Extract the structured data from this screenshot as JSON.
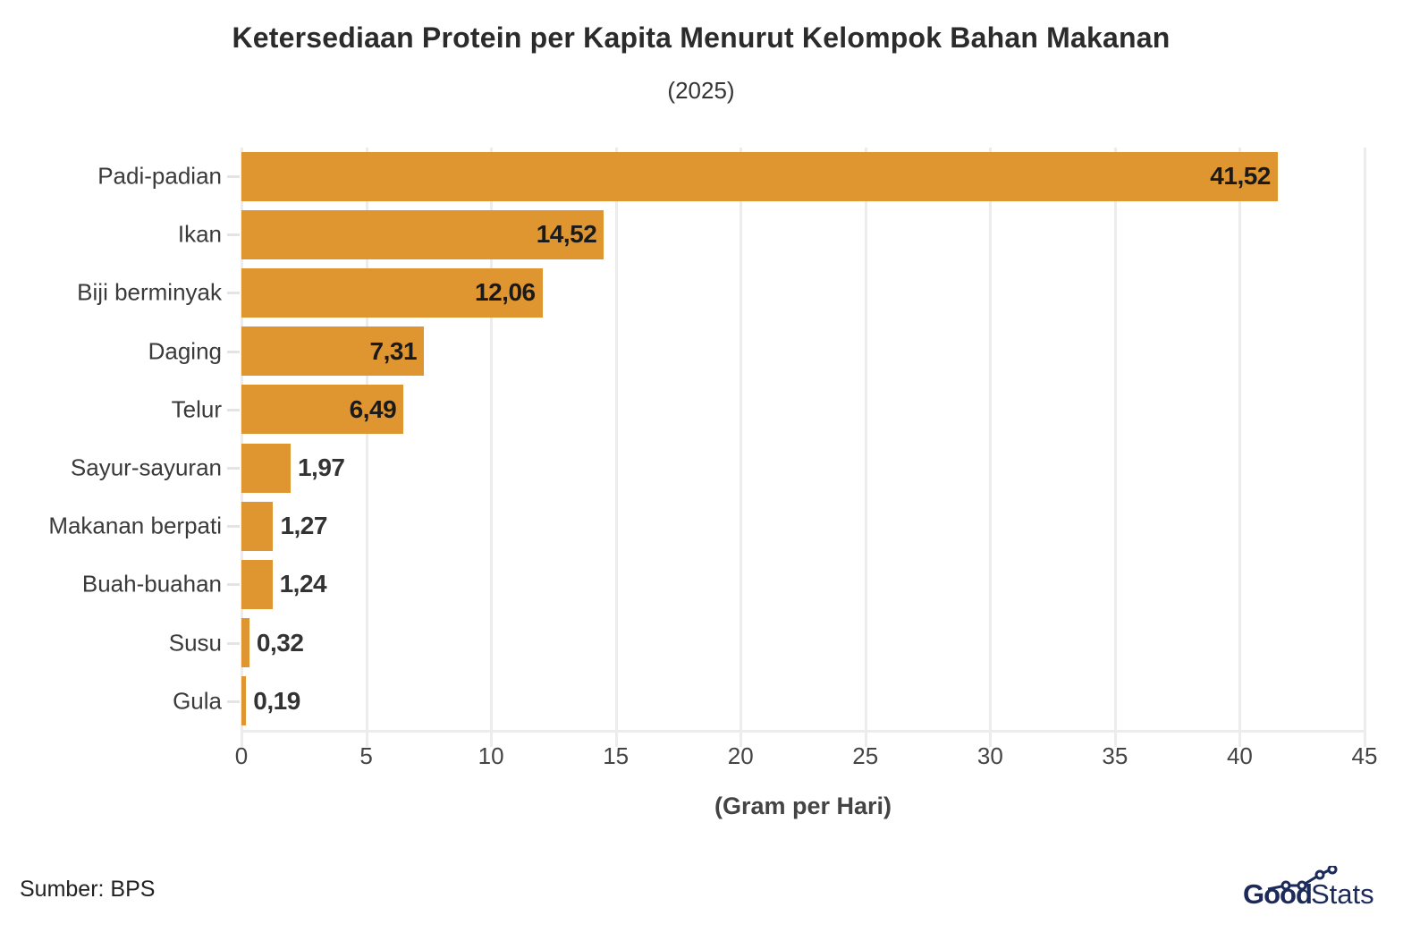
{
  "header": {
    "title": "Ketersediaan Protein per Kapita Menurut Kelompok Bahan Makanan",
    "subtitle": "(2025)"
  },
  "footer": {
    "source": "Sumber: BPS",
    "logo_bold": "Good",
    "logo_light": "Stats"
  },
  "colors": {
    "bar": "#e09630",
    "grid": "#ececec",
    "logo": "#1c2a5a"
  },
  "chart_data": {
    "type": "bar",
    "orientation": "horizontal",
    "title": "Ketersediaan Protein per Kapita Menurut Kelompok Bahan Makanan",
    "subtitle": "(2025)",
    "xlabel": "(Gram per Hari)",
    "ylabel": "",
    "categories": [
      "Padi-padian",
      "Ikan",
      "Biji berminyak",
      "Daging",
      "Telur",
      "Sayur-sayuran",
      "Makanan berpati",
      "Buah-buahan",
      "Susu",
      "Gula"
    ],
    "values": [
      41.52,
      14.52,
      12.06,
      7.31,
      6.49,
      1.97,
      1.27,
      1.24,
      0.32,
      0.19
    ],
    "value_labels": [
      "41,52",
      "14,52",
      "12,06",
      "7,31",
      "6,49",
      "1,97",
      "1,27",
      "1,24",
      "0,32",
      "0,19"
    ],
    "xlim": [
      0,
      45
    ],
    "xticks": [
      "0",
      "5",
      "10",
      "15",
      "20",
      "25",
      "30",
      "35",
      "40",
      "45"
    ],
    "grid": true,
    "legend": "none",
    "source": "Sumber: BPS"
  }
}
